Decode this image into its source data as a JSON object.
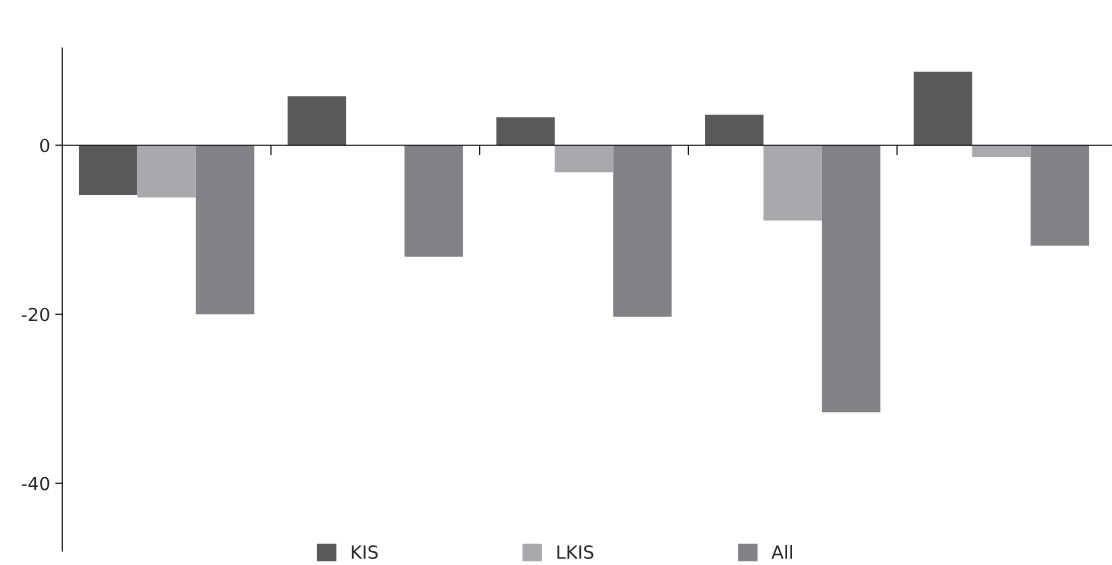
{
  "chart_data": {
    "type": "bar",
    "categories": [
      null,
      null,
      null,
      null,
      null
    ],
    "series": [
      {
        "name": "KIS",
        "color": "#58595b",
        "values": [
          -5.9,
          5.8,
          3.3,
          3.6,
          8.7
        ]
      },
      {
        "name": "LKIS",
        "color": "#a7a9ac",
        "values": [
          -6.2,
          null,
          -3.2,
          -8.9,
          -1.4
        ]
      },
      {
        "name": "All",
        "color": "#808285",
        "values": [
          -20,
          -13.2,
          -20.3,
          -31.6,
          -11.9
        ]
      }
    ],
    "ylim": [
      -48,
      11.5
    ],
    "yticks": [
      0,
      -20,
      -40
    ],
    "legend": "bottom",
    "tick_labels": "y"
  }
}
